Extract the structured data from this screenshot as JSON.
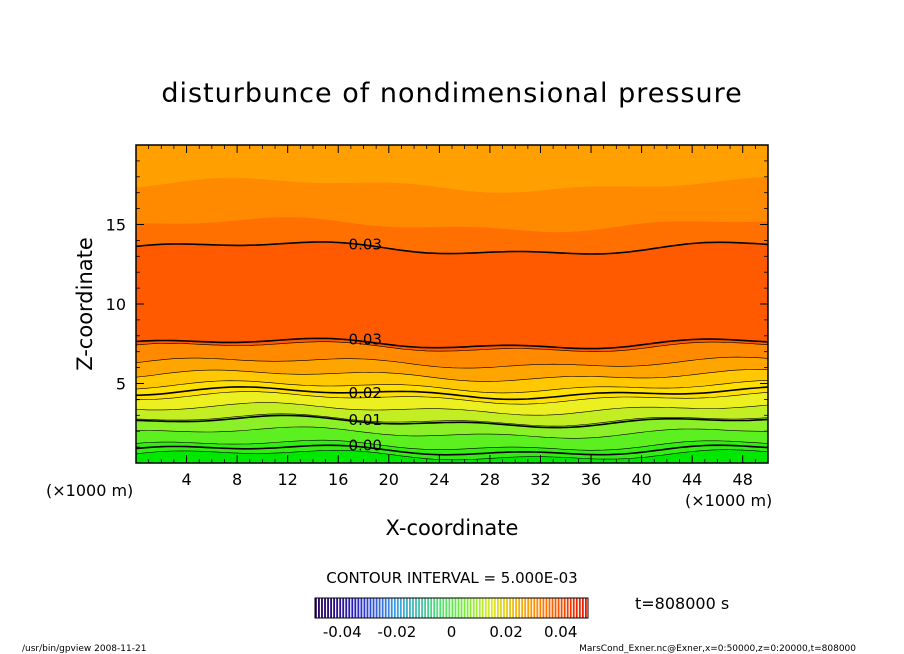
{
  "chart_data": {
    "type": "contour",
    "title": "disturbunce of nondimensional pressure",
    "xlabel": "X-coordinate",
    "ylabel": "Z-coordinate",
    "x_unit_left": "(×1000 m)",
    "x_unit_right": "(×1000 m)",
    "x_ticks": [
      4,
      8,
      12,
      16,
      20,
      24,
      28,
      32,
      36,
      40,
      44,
      48
    ],
    "y_ticks": [
      5,
      10,
      15
    ],
    "xlim": [
      0,
      50
    ],
    "ylim": [
      0,
      20
    ],
    "contour_interval_text": "CONTOUR INTERVAL = 5.000E-03",
    "time_text": "t=808000 s",
    "contour_labels": [
      {
        "text": "0.03",
        "x": 16.5,
        "z": 13.4
      },
      {
        "text": "0.03",
        "x": 16.5,
        "z": 7.5
      },
      {
        "text": "0.02",
        "x": 16.5,
        "z": 4.4
      },
      {
        "text": "0.01",
        "x": 16.5,
        "z": 2.6
      },
      {
        "text": "0.00",
        "x": 16.5,
        "z": 0.8
      }
    ],
    "colorbar": {
      "range": [
        -0.05,
        0.05
      ],
      "tick_labels": [
        "-0.04",
        "-0.02",
        "0",
        "0.02",
        "0.04"
      ],
      "tick_values": [
        -0.04,
        -0.02,
        0,
        0.02,
        0.04
      ]
    },
    "bands": [
      {
        "z0": 0.0,
        "z1": 0.5,
        "color": "#00e800"
      },
      {
        "z0": 0.5,
        "z1": 1.1,
        "color": "#33ec14"
      },
      {
        "z0": 1.1,
        "z1": 1.9,
        "color": "#5cf020"
      },
      {
        "z0": 1.9,
        "z1": 2.7,
        "color": "#8cf028"
      },
      {
        "z0": 2.7,
        "z1": 3.4,
        "color": "#c4ee24"
      },
      {
        "z0": 3.4,
        "z1": 4.1,
        "color": "#ecf020"
      },
      {
        "z0": 4.1,
        "z1": 4.8,
        "color": "#ffe000"
      },
      {
        "z0": 4.8,
        "z1": 5.5,
        "color": "#ffc800"
      },
      {
        "z0": 5.5,
        "z1": 6.3,
        "color": "#ffa500"
      },
      {
        "z0": 6.3,
        "z1": 7.3,
        "color": "#ff8a00"
      },
      {
        "z0": 7.3,
        "z1": 13.5,
        "color": "#ff5a00"
      },
      {
        "z0": 13.5,
        "z1": 15.0,
        "color": "#ff7000"
      },
      {
        "z0": 15.0,
        "z1": 17.5,
        "color": "#ff8a00"
      },
      {
        "z0": 17.5,
        "z1": 20.0,
        "color": "#ffa000"
      }
    ]
  },
  "footer": {
    "left": "/usr/bin/gpview   2008-11-21",
    "right": "MarsCond_Exner.nc@Exner,x=0:50000,z=0:20000,t=808000"
  }
}
